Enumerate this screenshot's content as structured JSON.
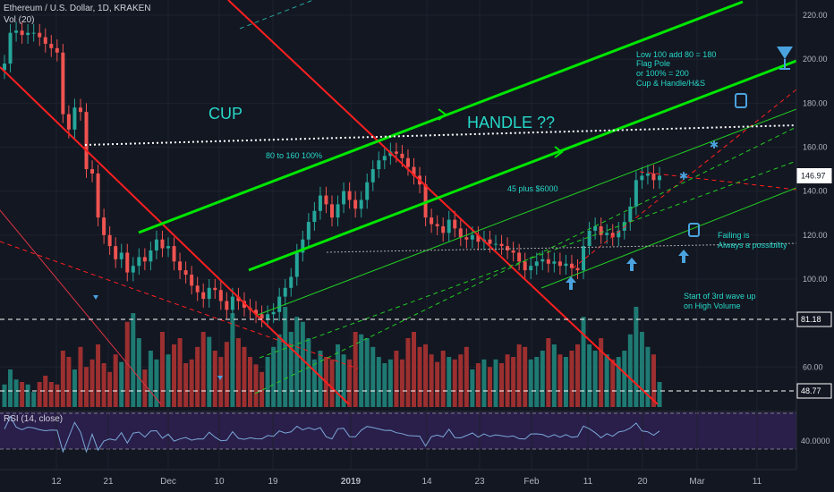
{
  "header": {
    "symbol_line": "Ethereum / U.S. Dollar, 1D, KRAKEN",
    "volume_label": "Vol (20)",
    "rsi_label": "RSI (14, close)"
  },
  "colors": {
    "background": "#131722",
    "up_candle": "#26a69a",
    "down_candle": "#ef5350",
    "green_channel": "#00e600",
    "red_channel": "#ff1f1f",
    "annotation_teal": "#26d8c8",
    "rsi_fill": "#2a1e4a",
    "arrow_blue": "#4aa3df"
  },
  "annotations": {
    "cup": "CUP",
    "handle": "HANDLE ??",
    "pct": "80 to 160 100%",
    "plus6000": "45 plus $6000",
    "note1": "Low 100 add 80 = 180",
    "note2": "Flag Pole",
    "note3": "or 100% = 200",
    "note4": "Cup & Handle/H&S",
    "fail1": "Failing is",
    "fail2": "Always a possibility",
    "wave1": "Start of 3rd wave up",
    "wave2": "on High Volume"
  },
  "chart_data": {
    "type": "candlestick",
    "title": "Ethereum / U.S. Dollar, 1D, KRAKEN",
    "price_axis": {
      "ticks": [
        220,
        200,
        180,
        160,
        140,
        120,
        100,
        60
      ],
      "tick_labels": [
        "220.00",
        "200.00",
        "180.00",
        "160.00",
        "140.00",
        "120.00",
        "100.00",
        "60.00"
      ]
    },
    "rsi_axis": {
      "tick_labels": [
        "40.0000"
      ]
    },
    "time_axis": {
      "labels": [
        "12",
        "21",
        "Dec",
        "10",
        "19",
        "2019",
        "14",
        "23",
        "Feb",
        "11",
        "20",
        "Mar",
        "11"
      ]
    },
    "price_badges": [
      {
        "value": "146.97",
        "kind": "last-price"
      },
      {
        "value": "81.18",
        "kind": "level"
      },
      {
        "value": "48.77",
        "kind": "level"
      }
    ],
    "close_values": [
      198,
      212,
      213,
      211,
      212,
      212,
      210,
      207,
      205,
      203,
      175,
      168,
      178,
      176,
      150,
      148,
      128,
      120,
      115,
      109,
      112,
      103,
      106,
      110,
      108,
      113,
      118,
      114,
      115,
      108,
      104,
      102,
      97,
      94,
      91,
      96,
      95,
      90,
      86,
      92,
      90,
      87,
      86,
      84,
      82,
      84,
      85,
      92,
      96,
      101,
      112,
      118,
      126,
      131,
      138,
      134,
      128,
      134,
      140,
      136,
      132,
      136,
      144,
      150,
      154,
      156,
      158,
      157,
      155,
      151,
      147,
      143,
      128,
      125,
      124,
      121,
      127,
      123,
      119,
      118,
      120,
      117,
      118,
      116,
      116,
      115,
      113,
      112,
      108,
      104,
      106,
      108,
      109,
      107,
      108,
      106,
      107,
      105,
      104,
      115,
      122,
      124,
      120,
      121,
      119,
      122,
      126,
      133,
      145,
      147,
      148,
      145,
      147
    ],
    "volume_values": [
      18,
      30,
      22,
      20,
      18,
      12,
      20,
      25,
      20,
      18,
      45,
      40,
      30,
      48,
      32,
      38,
      50,
      35,
      28,
      42,
      36,
      68,
      75,
      55,
      30,
      45,
      38,
      60,
      42,
      50,
      55,
      35,
      38,
      48,
      60,
      56,
      45,
      40,
      52,
      75,
      55,
      48,
      40,
      34,
      28,
      40,
      48,
      58,
      80,
      60,
      72,
      68,
      55,
      38,
      45,
      40,
      38,
      50,
      42,
      38,
      60,
      58,
      55,
      48,
      40,
      35,
      38,
      45,
      38,
      55,
      60,
      48,
      50,
      42,
      36,
      45,
      40,
      38,
      42,
      48,
      30,
      35,
      38,
      32,
      38,
      35,
      42,
      40,
      50,
      48,
      38,
      40,
      45,
      55,
      50,
      42,
      40,
      45,
      50,
      72,
      50,
      45,
      55,
      42,
      38,
      40,
      45,
      58,
      80,
      60,
      48,
      42,
      20
    ]
  }
}
